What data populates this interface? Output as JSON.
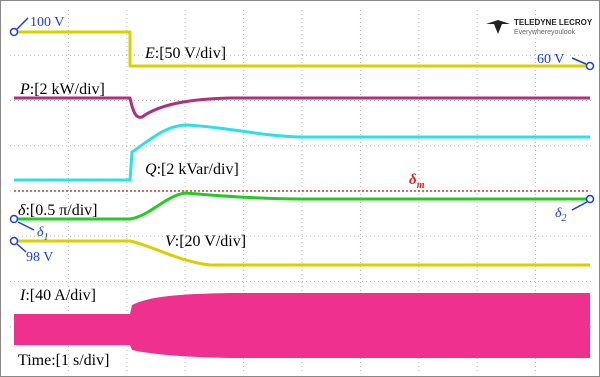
{
  "labels": {
    "e_start": "100 V",
    "e_end": "60 V",
    "v_start": "98 V",
    "e": {
      "symbol": "E",
      "scale": ":[50 V/div]"
    },
    "p": {
      "symbol": "P",
      "scale": ":[2 kW/div]"
    },
    "q": {
      "symbol": "Q",
      "scale": ":[2 kVar/div]"
    },
    "delta": {
      "symbol": "δ",
      "scale": ":[0.5 π/div]"
    },
    "v": {
      "symbol": "V",
      "scale": ":[20 V/div]"
    },
    "i": {
      "symbol": "I",
      "scale": ":[40 A/div]"
    },
    "time": "Time:[1 s/div]",
    "delta_m": {
      "symbol": "δ",
      "sub": "m"
    },
    "delta_1": {
      "symbol": "δ",
      "sub": "1"
    },
    "delta_2": {
      "symbol": "δ",
      "sub": "2"
    }
  },
  "logo": {
    "brand": "TELEDYNE LECROY",
    "tagline": "Everywhereyoulook"
  }
}
